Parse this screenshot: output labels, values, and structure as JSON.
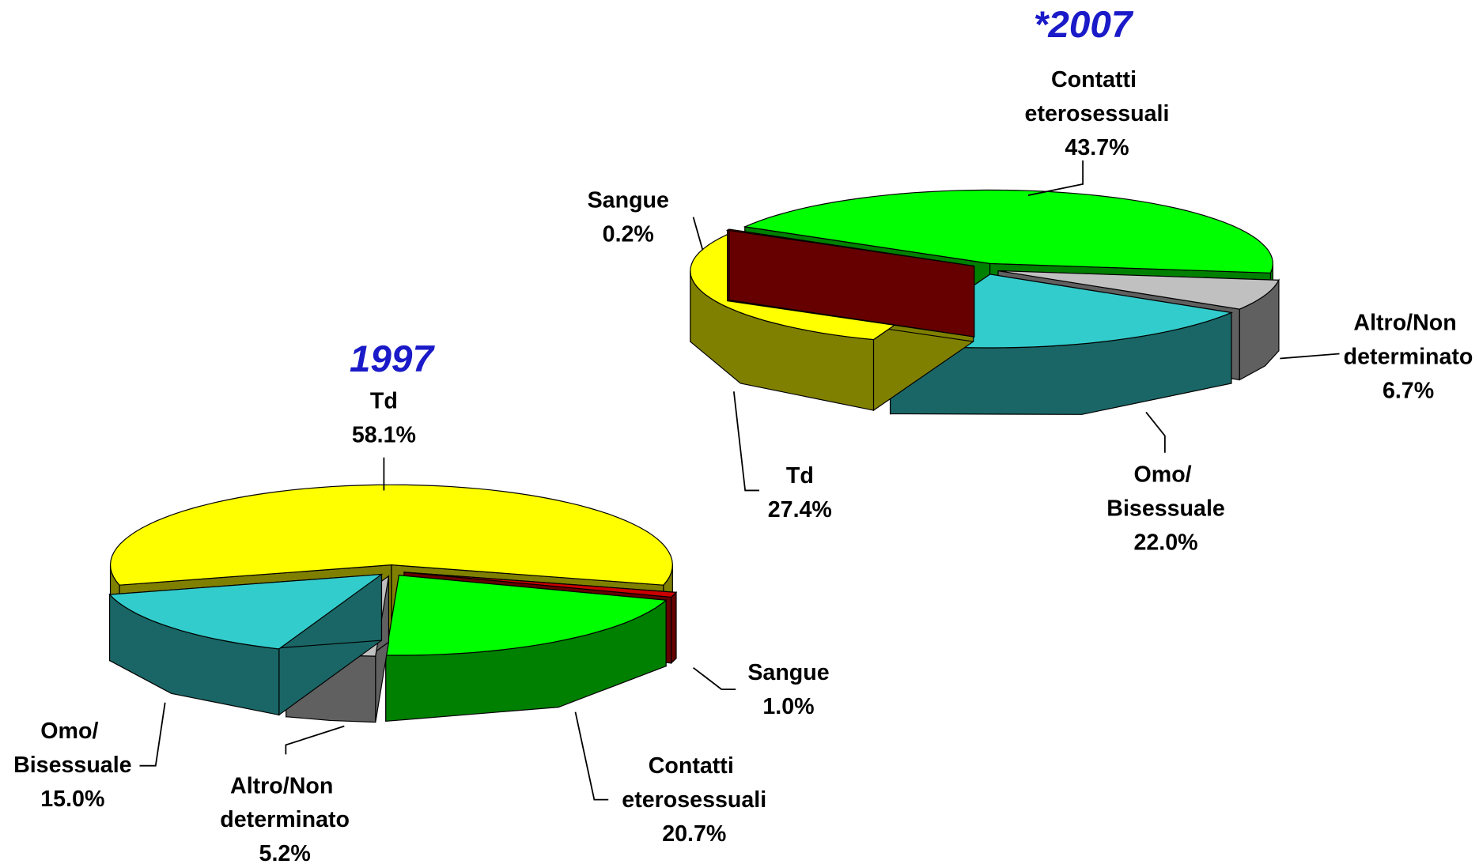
{
  "chart_data": [
    {
      "type": "pie3d",
      "title": "1997",
      "categories": [
        "Td",
        "Sangue",
        "Contatti eterosessuali",
        "Altro/Non determinato",
        "Omo/ Bisessuale"
      ],
      "values": [
        58.1,
        1.0,
        20.7,
        5.2,
        15.0
      ],
      "value_labels": [
        "58.1%",
        "1.0%",
        "20.7%",
        "5.2%",
        "15.0%"
      ],
      "colors": [
        "#ffff00",
        "#cc0000",
        "#00ff00",
        "#c0c0c0",
        "#33cccc"
      ]
    },
    {
      "type": "pie3d",
      "title": "*2007",
      "categories": [
        "Contatti eterosessuali",
        "Altro/Non determinato",
        "Omo/ Bisessuale",
        "Td",
        "Sangue"
      ],
      "values": [
        43.7,
        6.7,
        22.0,
        27.4,
        0.2
      ],
      "value_labels": [
        "43.7%",
        "6.7%",
        "22.0%",
        "27.4%",
        "0.2%"
      ],
      "colors": [
        "#00ff00",
        "#c0c0c0",
        "#33cccc",
        "#ffff00",
        "#cc0000"
      ]
    }
  ]
}
